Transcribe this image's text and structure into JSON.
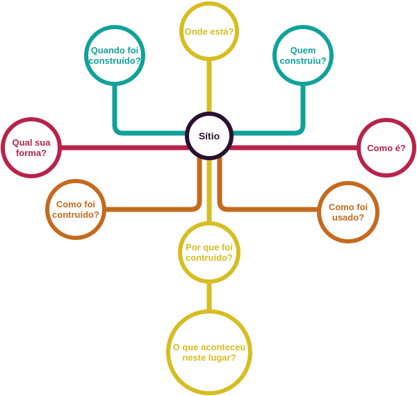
{
  "colors": {
    "teal": "#10a29a",
    "yellow": "#d6bd21",
    "crimson": "#b7234a",
    "orange": "#c46a1f",
    "center_ring": "#2a1030"
  },
  "nodes": {
    "center": "Sítio",
    "onde_esta": "Onde está?",
    "quando_foi": "Quando foi\nconstruído?",
    "quem_construiu": "Quem\nconstruiu?",
    "qual_forma": "Qual sua\nforma?",
    "como_e": "Como é?",
    "como_foi_construido": "Como foi\ncontruído?",
    "como_foi_usado": "Como foi\nusado?",
    "por_que": "Por que foi\ncontruído?",
    "o_que_aconteceu": "O que aconteceu\nneste lugar?"
  }
}
